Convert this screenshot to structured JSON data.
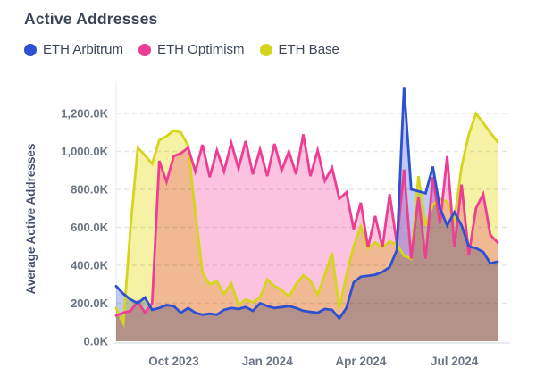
{
  "header": {
    "title": "Active Addresses"
  },
  "y_axis": {
    "title": "Average Active Addresses",
    "tick_labels": [
      "0.0K",
      "200.0K",
      "400.0K",
      "600.0K",
      "800.0K",
      "1,000.0K",
      "1,200.0K"
    ],
    "tick_values": [
      0,
      200,
      400,
      600,
      800,
      1000,
      1200
    ]
  },
  "x_axis": {
    "ticks": [
      {
        "label": "Oct 2023",
        "index": 8
      },
      {
        "label": "Jan 2024",
        "index": 21
      },
      {
        "label": "Apr 2024",
        "index": 34
      },
      {
        "label": "Jul 2024",
        "index": 47
      }
    ]
  },
  "colors": {
    "title_text": "#3b4457",
    "axis_text": "#6b7484",
    "gridline": "#e7e7ea",
    "axis_line": "#e2e5ea"
  },
  "chart_data": {
    "type": "area",
    "title": "Active Addresses",
    "ylabel": "Average Active Addresses",
    "xlabel": "",
    "unit": "thousands of addresses (K)",
    "ylim": [
      0,
      1400
    ],
    "grid": "horizontal-dashed",
    "legend_position": "top",
    "x": [
      "2023-08-13",
      "2023-08-20",
      "2023-08-27",
      "2023-09-03",
      "2023-09-10",
      "2023-09-17",
      "2023-09-24",
      "2023-10-01",
      "2023-10-08",
      "2023-10-15",
      "2023-10-22",
      "2023-10-29",
      "2023-11-05",
      "2023-11-12",
      "2023-11-19",
      "2023-11-26",
      "2023-12-03",
      "2023-12-10",
      "2023-12-17",
      "2023-12-24",
      "2023-12-31",
      "2024-01-07",
      "2024-01-14",
      "2024-01-21",
      "2024-01-28",
      "2024-02-04",
      "2024-02-11",
      "2024-02-18",
      "2024-02-25",
      "2024-03-03",
      "2024-03-10",
      "2024-03-17",
      "2024-03-24",
      "2024-03-31",
      "2024-04-07",
      "2024-04-14",
      "2024-04-21",
      "2024-04-28",
      "2024-05-05",
      "2024-05-12",
      "2024-05-19",
      "2024-05-26",
      "2024-06-02",
      "2024-06-09",
      "2024-06-16",
      "2024-06-23",
      "2024-06-30",
      "2024-07-07",
      "2024-07-14",
      "2024-07-21",
      "2024-07-28",
      "2024-08-04",
      "2024-08-11",
      "2024-08-18"
    ],
    "series": [
      {
        "name": "ETH Base",
        "color": "#d6d51d",
        "fill": "#f5f2a6",
        "values": [
          175,
          95,
          600,
          1020,
          980,
          935,
          1060,
          1080,
          1110,
          1100,
          1030,
          680,
          360,
          300,
          315,
          250,
          305,
          190,
          220,
          205,
          230,
          325,
          290,
          270,
          235,
          300,
          348,
          320,
          245,
          350,
          465,
          175,
          350,
          500,
          605,
          490,
          520,
          495,
          525,
          510,
          450,
          435,
          870,
          610,
          720,
          750,
          735,
          640,
          920,
          1090,
          1200,
          1150,
          1100,
          1050
        ]
      },
      {
        "name": "ETH Optimism",
        "color": "#ee3d95",
        "fill": "#fbc3df",
        "values": [
          135,
          150,
          160,
          210,
          150,
          200,
          950,
          840,
          975,
          990,
          1020,
          895,
          1035,
          865,
          1005,
          895,
          1045,
          910,
          1055,
          880,
          1010,
          870,
          1040,
          900,
          1000,
          880,
          1090,
          870,
          1005,
          845,
          915,
          750,
          785,
          590,
          730,
          495,
          660,
          495,
          775,
          515,
          905,
          435,
          760,
          435,
          865,
          620,
          975,
          495,
          825,
          455,
          700,
          775,
          560,
          520
        ]
      },
      {
        "name": "ETH Arbitrum",
        "color": "#2d51d0",
        "fill": "#bfc9f1",
        "values": [
          290,
          250,
          220,
          200,
          230,
          165,
          175,
          190,
          185,
          150,
          175,
          150,
          140,
          145,
          140,
          165,
          175,
          170,
          180,
          160,
          200,
          185,
          175,
          180,
          185,
          175,
          160,
          155,
          150,
          170,
          165,
          120,
          175,
          310,
          340,
          345,
          350,
          365,
          390,
          480,
          1340,
          800,
          790,
          780,
          920,
          700,
          610,
          680,
          610,
          500,
          490,
          470,
          410,
          420
        ]
      }
    ],
    "legend_order": [
      "ETH Arbitrum",
      "ETH Optimism",
      "ETH Base"
    ]
  }
}
